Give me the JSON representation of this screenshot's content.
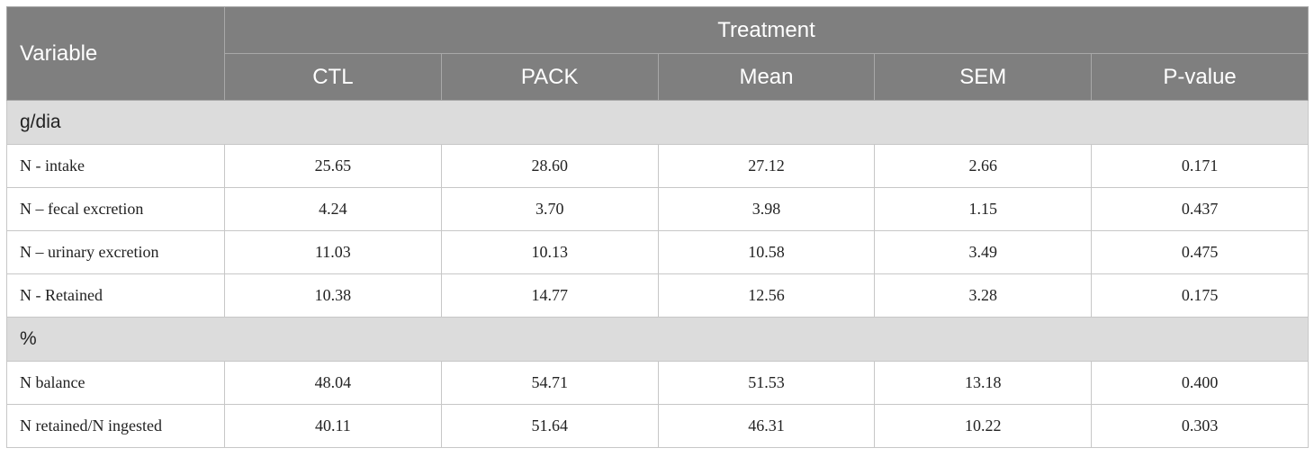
{
  "header": {
    "variable": "Variable",
    "treatment": "Treatment",
    "columns": [
      "CTL",
      "PACK",
      "Mean",
      "SEM",
      "P-value"
    ]
  },
  "sections": [
    {
      "title": "g/dia",
      "rows": [
        {
          "label": "N - intake",
          "values": [
            "25.65",
            "28.60",
            "27.12",
            "2.66",
            "0.171"
          ]
        },
        {
          "label": "N – fecal excretion",
          "values": [
            "4.24",
            "3.70",
            "3.98",
            "1.15",
            "0.437"
          ]
        },
        {
          "label": "N – urinary excretion",
          "values": [
            "11.03",
            "10.13",
            "10.58",
            "3.49",
            "0.475"
          ]
        },
        {
          "label": "N - Retained",
          "values": [
            "10.38",
            "14.77",
            "12.56",
            "3.28",
            "0.175"
          ]
        }
      ]
    },
    {
      "title": "%",
      "rows": [
        {
          "label": "N balance",
          "values": [
            "48.04",
            "54.71",
            "51.53",
            "13.18",
            "0.400"
          ]
        },
        {
          "label": "N retained/N ingested",
          "values": [
            "40.11",
            "51.64",
            "46.31",
            "10.22",
            "0.303"
          ]
        }
      ]
    }
  ]
}
